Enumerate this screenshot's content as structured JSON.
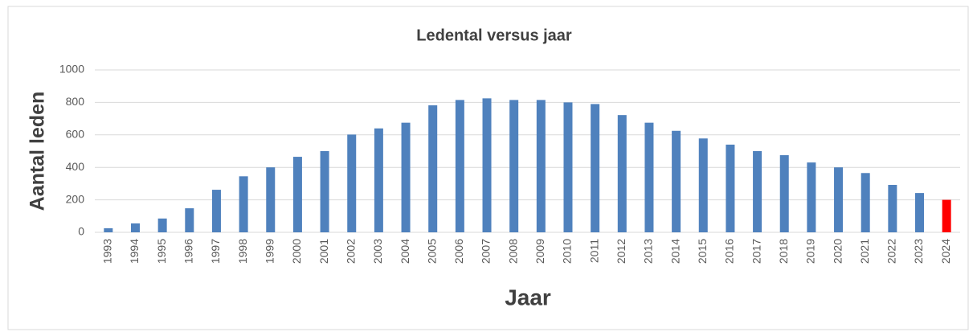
{
  "chart_data": {
    "type": "bar",
    "title": "Ledental versus jaar",
    "x_label": "Jaar",
    "y_label": "Aantal leden",
    "categories": [
      "1993",
      "1994",
      "1995",
      "1996",
      "1997",
      "1998",
      "1999",
      "2000",
      "2001",
      "2002",
      "2003",
      "2004",
      "2005",
      "2006",
      "2007",
      "2008",
      "2009",
      "2010",
      "2011",
      "2012",
      "2013",
      "2014",
      "2015",
      "2016",
      "2017",
      "2018",
      "2019",
      "2020",
      "2021",
      "2022",
      "2023",
      "2024"
    ],
    "values": [
      25,
      55,
      85,
      148,
      262,
      345,
      400,
      465,
      500,
      602,
      640,
      675,
      782,
      815,
      825,
      815,
      815,
      800,
      790,
      722,
      675,
      625,
      578,
      540,
      500,
      475,
      430,
      400,
      365,
      292,
      242,
      200
    ],
    "colors": [
      "#4f81bd",
      "#4f81bd",
      "#4f81bd",
      "#4f81bd",
      "#4f81bd",
      "#4f81bd",
      "#4f81bd",
      "#4f81bd",
      "#4f81bd",
      "#4f81bd",
      "#4f81bd",
      "#4f81bd",
      "#4f81bd",
      "#4f81bd",
      "#4f81bd",
      "#4f81bd",
      "#4f81bd",
      "#4f81bd",
      "#4f81bd",
      "#4f81bd",
      "#4f81bd",
      "#4f81bd",
      "#4f81bd",
      "#4f81bd",
      "#4f81bd",
      "#4f81bd",
      "#4f81bd",
      "#4f81bd",
      "#4f81bd",
      "#4f81bd",
      "#4f81bd",
      "#ff0000"
    ],
    "ylim": [
      0,
      1000
    ],
    "yticks": [
      0,
      200,
      400,
      600,
      800,
      1000
    ],
    "grid": true
  }
}
